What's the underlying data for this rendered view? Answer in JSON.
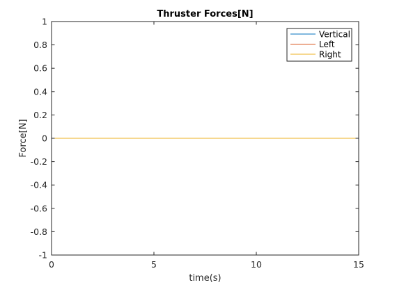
{
  "chart_data": {
    "type": "line",
    "title": "Thruster Forces[N]",
    "xlabel": "time(s)",
    "ylabel": "Force[N]",
    "xlim": [
      0,
      15
    ],
    "ylim": [
      -1,
      1
    ],
    "xticks": [
      0,
      5,
      10,
      15
    ],
    "xtick_labels": [
      "0",
      "5",
      "10",
      "15"
    ],
    "yticks": [
      1,
      0.8,
      0.6,
      0.4,
      0.2,
      0,
      -0.2,
      -0.4,
      -0.6,
      -0.8,
      -1
    ],
    "ytick_labels": [
      "1",
      "0.8",
      "0.6",
      "0.4",
      "0.2",
      "0",
      "-0.2",
      "-0.4",
      "-0.6",
      "-0.8",
      "-1"
    ],
    "grid": false,
    "legend_position": "top-right",
    "series": [
      {
        "name": "Vertical",
        "color": "#0072bd",
        "x": [
          0,
          15
        ],
        "y": [
          0,
          0
        ]
      },
      {
        "name": "Left",
        "color": "#d95319",
        "x": [
          0,
          15
        ],
        "y": [
          0,
          0
        ]
      },
      {
        "name": "Right",
        "color": "#edb120",
        "x": [
          0,
          15
        ],
        "y": [
          0,
          0
        ]
      }
    ]
  }
}
